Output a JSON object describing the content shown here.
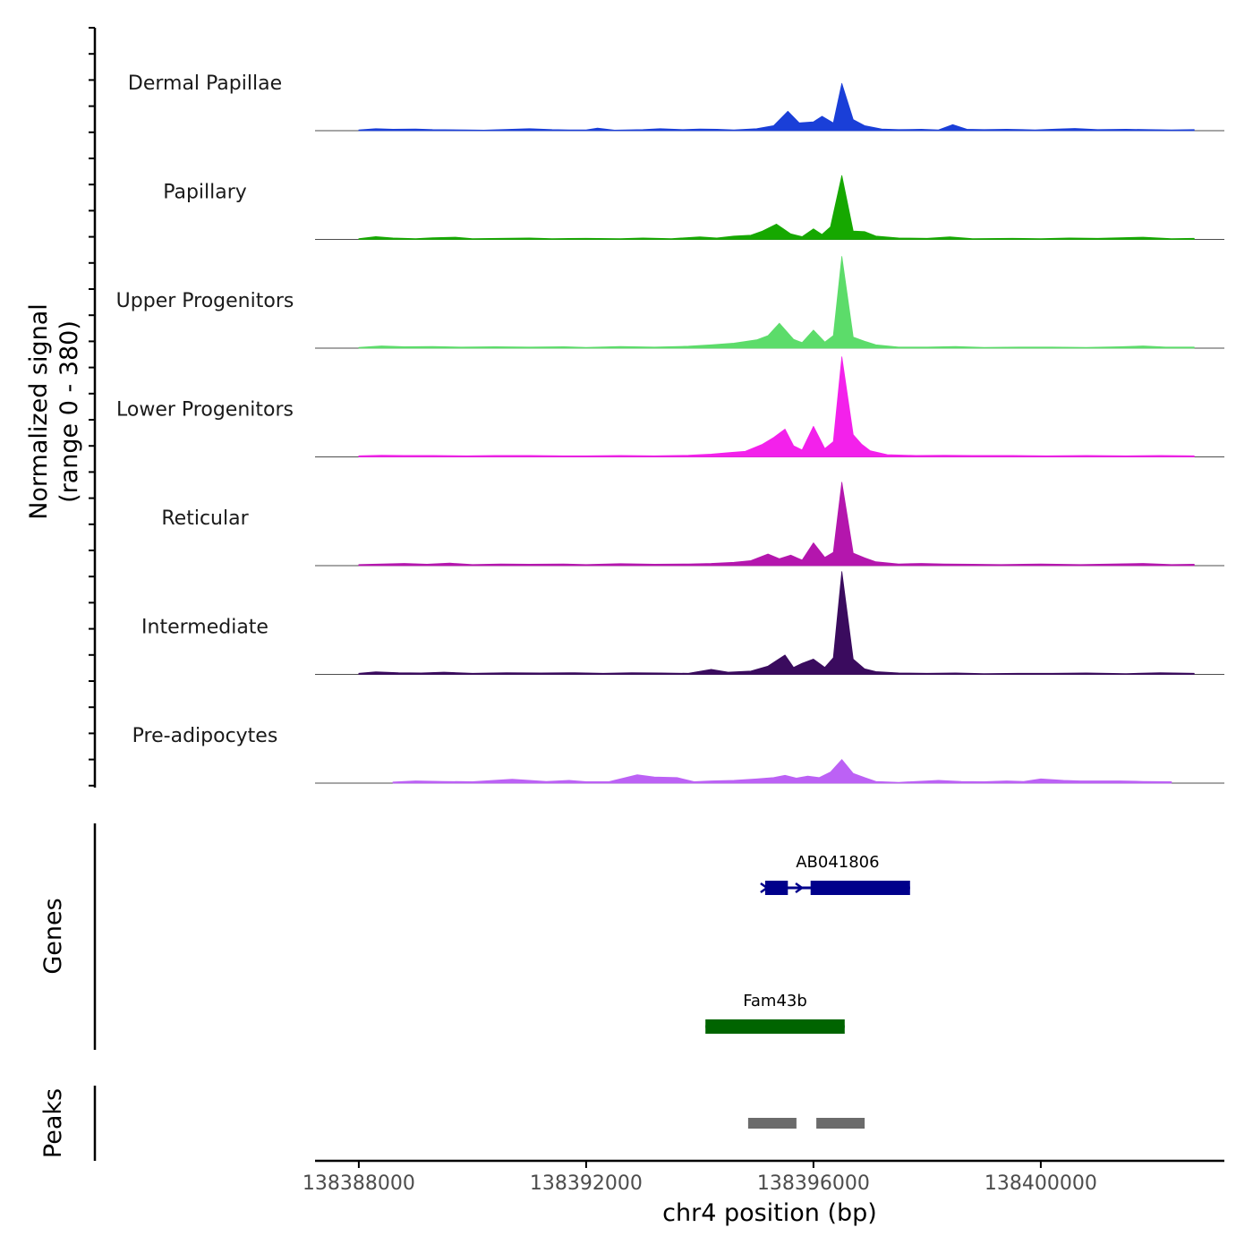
{
  "chart_data": {
    "type": "area",
    "title": "",
    "chromosome": "chr4",
    "xlabel": "chr4 position (bp)",
    "xlim": [
      138387230,
      138403230
    ],
    "xticks": [
      138388000,
      138392000,
      138396000,
      138400000
    ],
    "xtick_labels": [
      "138388000",
      "138392000",
      "138396000",
      "138400000"
    ],
    "signal_ylabel_line1": "Normalized signal",
    "signal_ylabel_line2": "(range 0 - 380)",
    "signal_range": [
      0,
      380
    ],
    "genes_label": "Genes",
    "peaks_label": "Peaks",
    "tracks": [
      {
        "name": "Dermal Papillae",
        "color": "#1a3fd8",
        "points": [
          [
            138388000,
            3
          ],
          [
            138388300,
            7
          ],
          [
            138388600,
            5
          ],
          [
            138389000,
            6
          ],
          [
            138389300,
            4
          ],
          [
            138389900,
            3
          ],
          [
            138390200,
            2
          ],
          [
            138390700,
            5
          ],
          [
            138391000,
            7
          ],
          [
            138391400,
            4
          ],
          [
            138391700,
            3
          ],
          [
            138392000,
            3
          ],
          [
            138392200,
            9
          ],
          [
            138392500,
            2
          ],
          [
            138393000,
            4
          ],
          [
            138393300,
            7
          ],
          [
            138393700,
            4
          ],
          [
            138394000,
            6
          ],
          [
            138394300,
            5
          ],
          [
            138394600,
            3
          ],
          [
            138395000,
            7
          ],
          [
            138395300,
            18
          ],
          [
            138395550,
            70
          ],
          [
            138395750,
            28
          ],
          [
            138396000,
            32
          ],
          [
            138396150,
            52
          ],
          [
            138396350,
            28
          ],
          [
            138396500,
            170
          ],
          [
            138396700,
            40
          ],
          [
            138396900,
            18
          ],
          [
            138397200,
            6
          ],
          [
            138397500,
            4
          ],
          [
            138397900,
            5
          ],
          [
            138398200,
            3
          ],
          [
            138398450,
            22
          ],
          [
            138398700,
            5
          ],
          [
            138399000,
            4
          ],
          [
            138399400,
            5
          ],
          [
            138399900,
            3
          ],
          [
            138400300,
            6
          ],
          [
            138400600,
            8
          ],
          [
            138401000,
            4
          ],
          [
            138401500,
            5
          ],
          [
            138401900,
            4
          ],
          [
            138402300,
            3
          ],
          [
            138402700,
            4
          ]
        ]
      },
      {
        "name": "Papillary",
        "color": "#16a800",
        "points": [
          [
            138388000,
            3
          ],
          [
            138388300,
            10
          ],
          [
            138388600,
            5
          ],
          [
            138389000,
            3
          ],
          [
            138389300,
            6
          ],
          [
            138389700,
            8
          ],
          [
            138390000,
            3
          ],
          [
            138390500,
            4
          ],
          [
            138391000,
            5
          ],
          [
            138391400,
            3
          ],
          [
            138392000,
            4
          ],
          [
            138392600,
            3
          ],
          [
            138393000,
            5
          ],
          [
            138393500,
            3
          ],
          [
            138394000,
            9
          ],
          [
            138394300,
            5
          ],
          [
            138394600,
            12
          ],
          [
            138394900,
            15
          ],
          [
            138395100,
            30
          ],
          [
            138395350,
            55
          ],
          [
            138395600,
            20
          ],
          [
            138395800,
            10
          ],
          [
            138396000,
            38
          ],
          [
            138396150,
            18
          ],
          [
            138396300,
            45
          ],
          [
            138396500,
            230
          ],
          [
            138396700,
            30
          ],
          [
            138396900,
            28
          ],
          [
            138397100,
            12
          ],
          [
            138397500,
            5
          ],
          [
            138398000,
            4
          ],
          [
            138398400,
            9
          ],
          [
            138398800,
            3
          ],
          [
            138399500,
            4
          ],
          [
            138400000,
            3
          ],
          [
            138400500,
            5
          ],
          [
            138401000,
            4
          ],
          [
            138401800,
            8
          ],
          [
            138402300,
            3
          ],
          [
            138402700,
            4
          ]
        ]
      },
      {
        "name": "Upper Progenitors",
        "color": "#5cdc6a",
        "points": [
          [
            138388000,
            3
          ],
          [
            138388400,
            8
          ],
          [
            138388800,
            5
          ],
          [
            138389300,
            6
          ],
          [
            138389800,
            4
          ],
          [
            138390400,
            5
          ],
          [
            138391000,
            4
          ],
          [
            138391600,
            5
          ],
          [
            138392000,
            3
          ],
          [
            138392600,
            6
          ],
          [
            138393200,
            4
          ],
          [
            138393800,
            7
          ],
          [
            138394200,
            12
          ],
          [
            138394600,
            18
          ],
          [
            138395000,
            30
          ],
          [
            138395200,
            45
          ],
          [
            138395400,
            90
          ],
          [
            138395650,
            32
          ],
          [
            138395800,
            20
          ],
          [
            138396000,
            65
          ],
          [
            138396200,
            22
          ],
          [
            138396350,
            45
          ],
          [
            138396500,
            330
          ],
          [
            138396700,
            40
          ],
          [
            138396900,
            25
          ],
          [
            138397100,
            12
          ],
          [
            138397500,
            4
          ],
          [
            138398000,
            4
          ],
          [
            138398500,
            6
          ],
          [
            138399000,
            3
          ],
          [
            138399600,
            4
          ],
          [
            138400200,
            4
          ],
          [
            138400800,
            3
          ],
          [
            138401400,
            5
          ],
          [
            138401800,
            8
          ],
          [
            138402200,
            4
          ],
          [
            138402700,
            4
          ]
        ]
      },
      {
        "name": "Lower Progenitors",
        "color": "#f321eb",
        "points": [
          [
            138388000,
            4
          ],
          [
            138388400,
            6
          ],
          [
            138388800,
            5
          ],
          [
            138389300,
            5
          ],
          [
            138389900,
            4
          ],
          [
            138390400,
            5
          ],
          [
            138391000,
            5
          ],
          [
            138391600,
            4
          ],
          [
            138392000,
            4
          ],
          [
            138392600,
            5
          ],
          [
            138393200,
            4
          ],
          [
            138393800,
            6
          ],
          [
            138394200,
            10
          ],
          [
            138394500,
            15
          ],
          [
            138394800,
            20
          ],
          [
            138395100,
            45
          ],
          [
            138395300,
            70
          ],
          [
            138395500,
            100
          ],
          [
            138395650,
            40
          ],
          [
            138395800,
            25
          ],
          [
            138396000,
            110
          ],
          [
            138396200,
            30
          ],
          [
            138396350,
            55
          ],
          [
            138396500,
            360
          ],
          [
            138396700,
            80
          ],
          [
            138396850,
            45
          ],
          [
            138397000,
            22
          ],
          [
            138397300,
            8
          ],
          [
            138397800,
            5
          ],
          [
            138398300,
            6
          ],
          [
            138398800,
            5
          ],
          [
            138399500,
            5
          ],
          [
            138400100,
            4
          ],
          [
            138400800,
            5
          ],
          [
            138401500,
            4
          ],
          [
            138402100,
            5
          ],
          [
            138402700,
            4
          ]
        ]
      },
      {
        "name": "Reticular",
        "color": "#b416ad",
        "points": [
          [
            138388000,
            4
          ],
          [
            138388400,
            6
          ],
          [
            138388800,
            8
          ],
          [
            138389200,
            5
          ],
          [
            138389600,
            9
          ],
          [
            138390000,
            4
          ],
          [
            138390500,
            6
          ],
          [
            138391000,
            5
          ],
          [
            138391600,
            6
          ],
          [
            138392000,
            4
          ],
          [
            138392600,
            7
          ],
          [
            138393200,
            5
          ],
          [
            138393800,
            6
          ],
          [
            138394200,
            8
          ],
          [
            138394600,
            12
          ],
          [
            138394900,
            18
          ],
          [
            138395200,
            42
          ],
          [
            138395400,
            25
          ],
          [
            138395600,
            38
          ],
          [
            138395800,
            20
          ],
          [
            138396000,
            82
          ],
          [
            138396200,
            30
          ],
          [
            138396350,
            48
          ],
          [
            138396500,
            300
          ],
          [
            138396700,
            45
          ],
          [
            138396900,
            28
          ],
          [
            138397100,
            14
          ],
          [
            138397500,
            6
          ],
          [
            138397900,
            8
          ],
          [
            138398300,
            6
          ],
          [
            138398800,
            5
          ],
          [
            138399300,
            4
          ],
          [
            138400000,
            6
          ],
          [
            138400700,
            4
          ],
          [
            138401800,
            8
          ],
          [
            138402300,
            4
          ],
          [
            138402700,
            5
          ]
        ]
      },
      {
        "name": "Intermediate",
        "color": "#3a0b5e",
        "points": [
          [
            138388000,
            4
          ],
          [
            138388300,
            9
          ],
          [
            138388700,
            6
          ],
          [
            138389100,
            5
          ],
          [
            138389500,
            8
          ],
          [
            138390000,
            4
          ],
          [
            138390600,
            6
          ],
          [
            138391200,
            5
          ],
          [
            138391800,
            6
          ],
          [
            138392300,
            4
          ],
          [
            138392800,
            6
          ],
          [
            138393300,
            5
          ],
          [
            138393800,
            4
          ],
          [
            138394200,
            18
          ],
          [
            138394500,
            8
          ],
          [
            138394900,
            12
          ],
          [
            138395200,
            30
          ],
          [
            138395500,
            70
          ],
          [
            138395650,
            25
          ],
          [
            138395800,
            40
          ],
          [
            138396000,
            55
          ],
          [
            138396200,
            25
          ],
          [
            138396350,
            60
          ],
          [
            138396500,
            370
          ],
          [
            138396700,
            55
          ],
          [
            138396900,
            20
          ],
          [
            138397100,
            10
          ],
          [
            138397500,
            5
          ],
          [
            138398000,
            4
          ],
          [
            138398500,
            5
          ],
          [
            138399000,
            3
          ],
          [
            138399600,
            4
          ],
          [
            138400200,
            4
          ],
          [
            138400800,
            5
          ],
          [
            138401500,
            3
          ],
          [
            138402100,
            6
          ],
          [
            138402700,
            4
          ]
        ]
      },
      {
        "name": "Pre-adipocytes",
        "color": "#bc61f5",
        "points": [
          [
            138388600,
            4
          ],
          [
            138389000,
            8
          ],
          [
            138389500,
            6
          ],
          [
            138390000,
            5
          ],
          [
            138390700,
            14
          ],
          [
            138391000,
            10
          ],
          [
            138391300,
            6
          ],
          [
            138391700,
            10
          ],
          [
            138392000,
            5
          ],
          [
            138392400,
            5
          ],
          [
            138392900,
            30
          ],
          [
            138393200,
            22
          ],
          [
            138393600,
            20
          ],
          [
            138393900,
            5
          ],
          [
            138394200,
            8
          ],
          [
            138394600,
            10
          ],
          [
            138395000,
            15
          ],
          [
            138395300,
            20
          ],
          [
            138395500,
            28
          ],
          [
            138395700,
            18
          ],
          [
            138395900,
            25
          ],
          [
            138396100,
            20
          ],
          [
            138396300,
            40
          ],
          [
            138396500,
            85
          ],
          [
            138396700,
            35
          ],
          [
            138396900,
            20
          ],
          [
            138397100,
            6
          ],
          [
            138397500,
            3
          ],
          [
            138398200,
            10
          ],
          [
            138398600,
            6
          ],
          [
            138399000,
            5
          ],
          [
            138399400,
            8
          ],
          [
            138399700,
            6
          ],
          [
            138400000,
            15
          ],
          [
            138400400,
            10
          ],
          [
            138400700,
            8
          ],
          [
            138401400,
            8
          ],
          [
            138401800,
            6
          ],
          [
            138402300,
            5
          ]
        ]
      }
    ],
    "genes": [
      {
        "name": "AB041806",
        "color": "#00008b",
        "strand": "+",
        "start": 138395150,
        "end": 138397700,
        "exons": [
          [
            138395150,
            138395550
          ],
          [
            138395950,
            138397700
          ]
        ]
      },
      {
        "name": "Fam43b",
        "color": "#006400",
        "strand": "+",
        "start": 138394100,
        "end": 138396550,
        "exons": [
          [
            138394100,
            138396550
          ]
        ]
      }
    ],
    "peaks": {
      "color": "#6b6b6b",
      "regions": [
        [
          138394850,
          138395700
        ],
        [
          138396050,
          138396900
        ]
      ]
    }
  }
}
